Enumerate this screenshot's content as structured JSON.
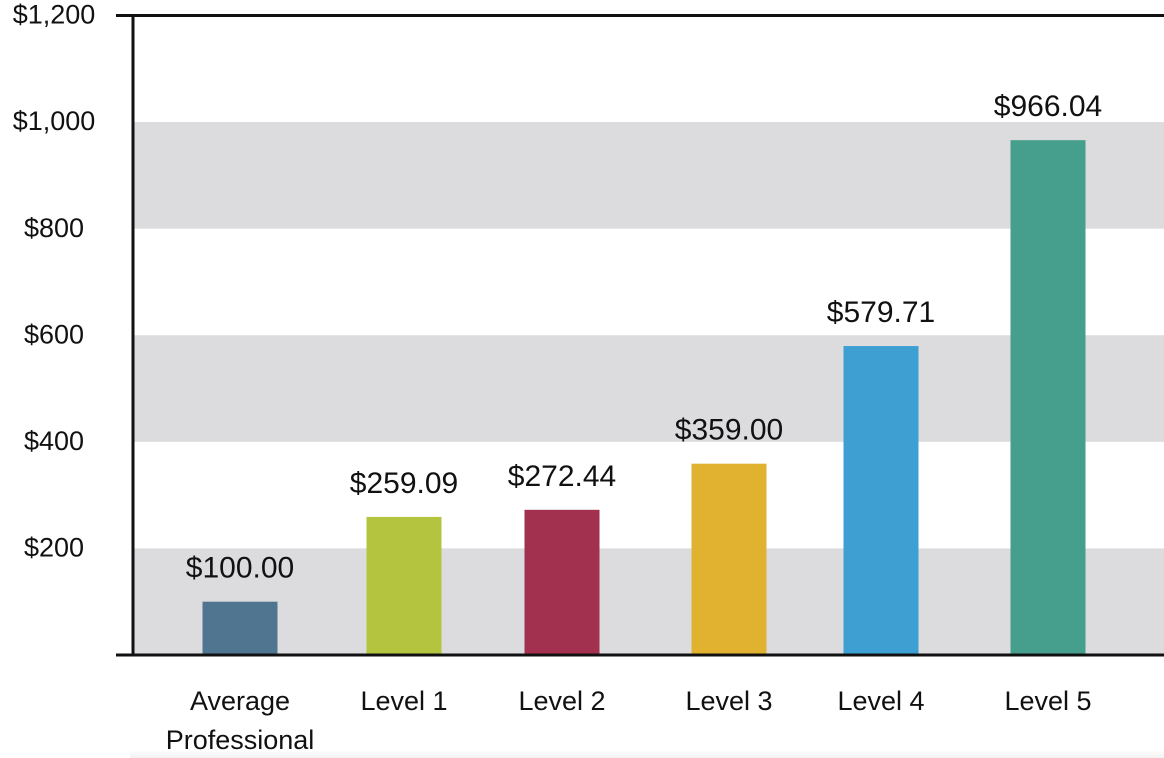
{
  "chart_data": {
    "type": "bar",
    "title": "",
    "xlabel": "",
    "ylabel": "",
    "ylim": [
      0,
      1200
    ],
    "y_ticks": [
      {
        "value": 200,
        "label": "$200"
      },
      {
        "value": 400,
        "label": "$400"
      },
      {
        "value": 600,
        "label": "$600"
      },
      {
        "value": 800,
        "label": "$800"
      },
      {
        "value": 1000,
        "label": "$1,000"
      },
      {
        "value": 1200,
        "label": "$1,200"
      }
    ],
    "grid": "alternating horizontal bands",
    "legend": "none",
    "band_color": "#dcdcde",
    "axis_color": "#111111",
    "categories": [
      {
        "label_lines": [
          "Average",
          "Professional"
        ],
        "value": 100.0,
        "value_label": "$100.00",
        "color": "#4f7590"
      },
      {
        "label_lines": [
          "Level 1"
        ],
        "value": 259.09,
        "value_label": "$259.09",
        "color": "#b5c43f"
      },
      {
        "label_lines": [
          "Level 2"
        ],
        "value": 272.44,
        "value_label": "$272.44",
        "color": "#a2304f"
      },
      {
        "label_lines": [
          "Level 3"
        ],
        "value": 359.0,
        "value_label": "$359.00",
        "color": "#e1b130"
      },
      {
        "label_lines": [
          "Level 4"
        ],
        "value": 579.71,
        "value_label": "$579.71",
        "color": "#3d9fd2"
      },
      {
        "label_lines": [
          "Level 5"
        ],
        "value": 966.04,
        "value_label": "$966.04",
        "color": "#459f8c"
      }
    ]
  }
}
